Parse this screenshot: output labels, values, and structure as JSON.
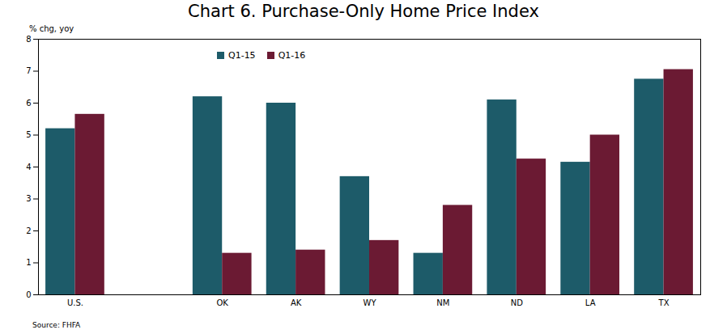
{
  "chart_data": {
    "type": "bar",
    "title": "Chart 6. Purchase-Only Home Price Index",
    "y_label": "% chg, yoy",
    "caption": "Source: FHFA",
    "categories": [
      "U.S.",
      null,
      "OK",
      "AK",
      "WY",
      "NM",
      "ND",
      "LA",
      "TX"
    ],
    "series": [
      {
        "name": "Q1-15",
        "color": "#1d5b69",
        "values": [
          5.2,
          null,
          6.2,
          6.0,
          3.7,
          1.3,
          6.1,
          4.15,
          6.75
        ]
      },
      {
        "name": "Q1-16",
        "color": "#6b1a33",
        "values": [
          5.65,
          null,
          1.3,
          1.4,
          1.7,
          2.8,
          4.25,
          5.0,
          7.05
        ]
      }
    ],
    "ylim": [
      0,
      8
    ],
    "yticks": [
      0,
      1,
      2,
      3,
      4,
      5,
      6,
      7,
      8
    ],
    "grid": false,
    "legend": "top"
  }
}
